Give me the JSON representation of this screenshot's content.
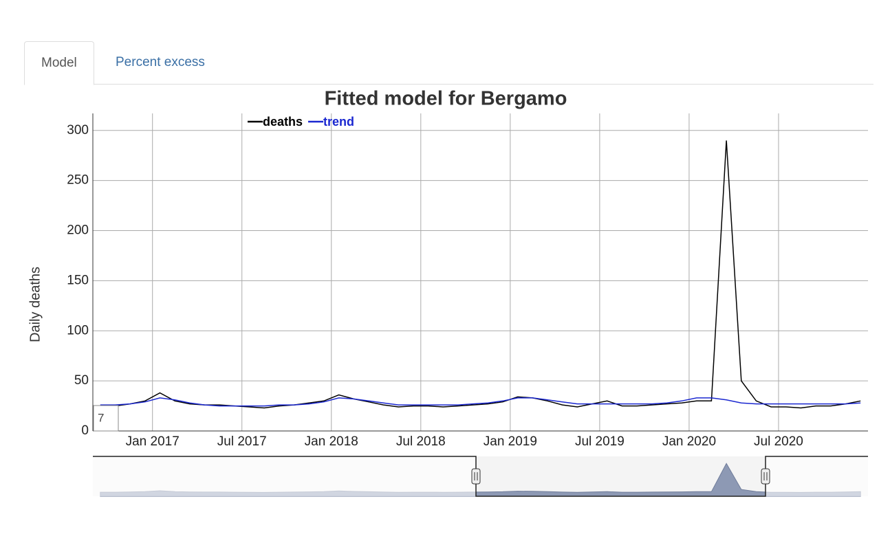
{
  "tabs": [
    "Model",
    "Percent excess"
  ],
  "chart_data": {
    "type": "line",
    "title": "Fitted model for Bergamo",
    "y_label": "Daily deaths",
    "roll_period": 7,
    "x": [
      "2016-09",
      "2016-10",
      "2016-11",
      "2016-12",
      "2017-01",
      "2017-02",
      "2017-03",
      "2017-04",
      "2017-05",
      "2017-06",
      "2017-07",
      "2017-08",
      "2017-09",
      "2017-10",
      "2017-11",
      "2017-12",
      "2018-01",
      "2018-02",
      "2018-03",
      "2018-04",
      "2018-05",
      "2018-06",
      "2018-07",
      "2018-08",
      "2018-09",
      "2018-10",
      "2018-11",
      "2018-12",
      "2019-01",
      "2019-02",
      "2019-03",
      "2019-04",
      "2019-05",
      "2019-06",
      "2019-07",
      "2019-08",
      "2019-09",
      "2019-10",
      "2019-11",
      "2019-12",
      "2020-01",
      "2020-02",
      "2020-03",
      "2020-04",
      "2020-05",
      "2020-06",
      "2020-07",
      "2020-08",
      "2020-09",
      "2020-10",
      "2020-11",
      "2020-12"
    ],
    "series": [
      {
        "name": "deaths",
        "color": "#000000",
        "values": [
          25,
          25,
          27,
          30,
          38,
          30,
          27,
          26,
          26,
          25,
          24,
          23,
          25,
          26,
          28,
          30,
          36,
          32,
          29,
          26,
          24,
          25,
          25,
          24,
          25,
          26,
          27,
          29,
          34,
          33,
          30,
          26,
          24,
          27,
          30,
          25,
          25,
          26,
          27,
          28,
          30,
          30,
          290,
          50,
          30,
          24,
          24,
          23,
          25,
          25,
          27,
          30
        ]
      },
      {
        "name": "trend",
        "color": "#1a27d0",
        "values": [
          26,
          26,
          27,
          29,
          33,
          31,
          28,
          26,
          25,
          25,
          25,
          25,
          26,
          26,
          27,
          29,
          33,
          32,
          30,
          28,
          26,
          26,
          26,
          26,
          26,
          27,
          28,
          30,
          33,
          33,
          31,
          29,
          27,
          27,
          27,
          27,
          27,
          27,
          28,
          30,
          33,
          33,
          31,
          28,
          27,
          27,
          27,
          27,
          27,
          27,
          27,
          28
        ]
      }
    ],
    "xlim": [
      "2016-09",
      "2020-12"
    ],
    "xticks": [
      {
        "value": "2017-01",
        "label": "Jan 2017"
      },
      {
        "value": "2017-07",
        "label": "Jul 2017"
      },
      {
        "value": "2018-01",
        "label": "Jan 2018"
      },
      {
        "value": "2018-07",
        "label": "Jul 2018"
      },
      {
        "value": "2019-01",
        "label": "Jan 2019"
      },
      {
        "value": "2019-07",
        "label": "Jul 2019"
      },
      {
        "value": "2020-01",
        "label": "Jan 2020"
      },
      {
        "value": "2020-07",
        "label": "Jul 2020"
      }
    ],
    "ylim": [
      0,
      317
    ],
    "yticks": [
      0,
      50,
      100,
      150,
      200,
      250,
      300
    ],
    "grid": true
  }
}
